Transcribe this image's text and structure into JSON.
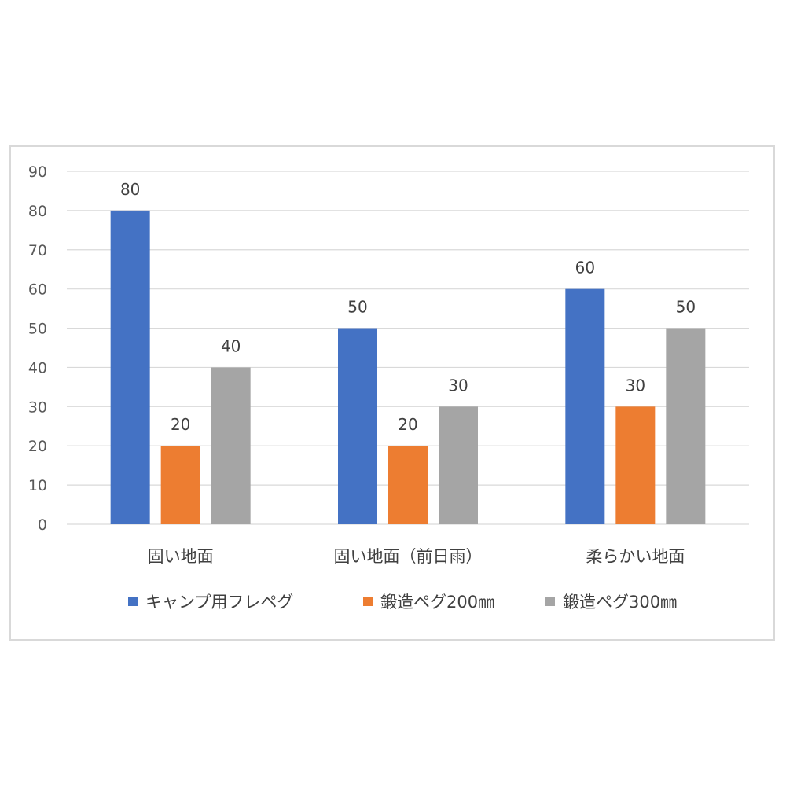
{
  "chart_data": {
    "type": "bar",
    "categories": [
      "固い地面",
      "固い地面（前日雨）",
      "柔らかい地面"
    ],
    "series": [
      {
        "name": "キャンプ用フレペグ",
        "values": [
          80,
          50,
          60
        ],
        "color": "#4472C4"
      },
      {
        "name": "鍛造ペグ200㎜",
        "values": [
          20,
          20,
          30
        ],
        "color": "#ED7D31"
      },
      {
        "name": "鍛造ペグ300㎜",
        "values": [
          40,
          30,
          50
        ],
        "color": "#A5A5A5"
      }
    ],
    "yticks": [
      0,
      10,
      20,
      30,
      40,
      50,
      60,
      70,
      80,
      90
    ],
    "ylim": [
      0,
      90
    ],
    "grid": true,
    "legend": "bottom",
    "data_labels": true,
    "gridline_color": "#d9d9d9"
  }
}
